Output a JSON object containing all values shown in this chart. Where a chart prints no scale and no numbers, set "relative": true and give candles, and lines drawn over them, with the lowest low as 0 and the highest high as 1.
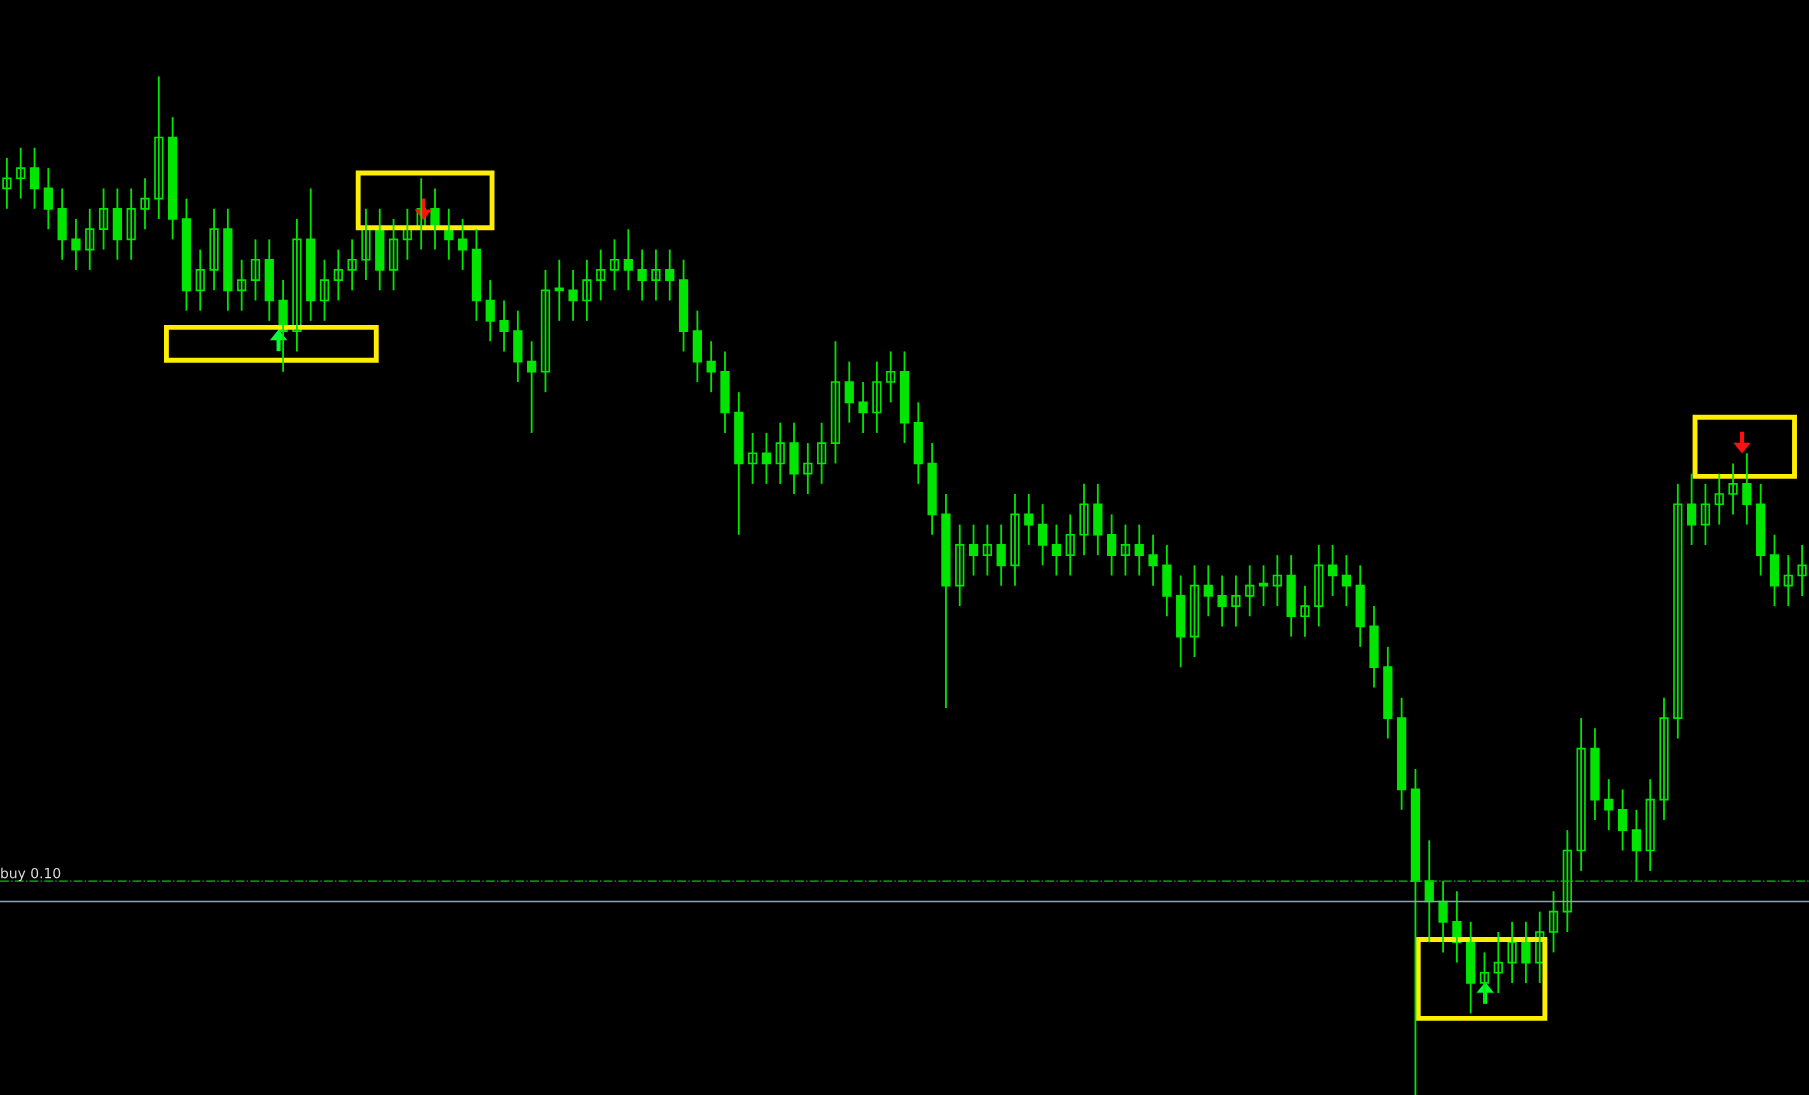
{
  "chart_data": {
    "type": "candlestick",
    "relative": true,
    "categories": [
      null,
      null,
      null,
      null,
      null,
      null,
      null,
      null,
      null,
      null,
      null,
      null,
      null,
      null,
      null,
      null,
      null,
      null,
      null,
      null,
      null,
      null,
      null,
      null,
      null,
      null,
      null,
      null,
      null,
      null,
      null,
      null,
      null,
      null,
      null,
      null,
      null,
      null,
      null,
      null,
      null,
      null,
      null,
      null,
      null,
      null,
      null,
      null,
      null,
      null,
      null,
      null,
      null,
      null,
      null,
      null,
      null,
      null,
      null,
      null,
      null,
      null,
      null,
      null,
      null,
      null,
      null,
      null,
      null,
      null,
      null,
      null,
      null,
      null,
      null,
      null,
      null,
      null,
      null,
      null,
      null,
      null,
      null,
      null,
      null,
      null,
      null,
      null,
      null,
      null,
      null,
      null,
      null,
      null,
      null,
      null,
      null,
      null,
      null,
      null,
      null,
      null,
      null,
      null,
      null,
      null,
      null,
      null,
      null,
      null,
      null,
      null,
      null,
      null,
      null,
      null,
      null,
      null,
      null,
      null,
      null,
      null,
      null,
      null,
      null,
      null,
      null,
      null,
      null,
      null,
      null
    ],
    "series": [
      {
        "color": "#00e600",
        "ohlc": [
          [
            0.89,
            0.92,
            0.87,
            0.9
          ],
          [
            0.9,
            0.93,
            0.88,
            0.91
          ],
          [
            0.91,
            0.93,
            0.87,
            0.89
          ],
          [
            0.89,
            0.91,
            0.85,
            0.87
          ],
          [
            0.87,
            0.89,
            0.82,
            0.84
          ],
          [
            0.84,
            0.86,
            0.81,
            0.83
          ],
          [
            0.83,
            0.87,
            0.81,
            0.85
          ],
          [
            0.85,
            0.89,
            0.83,
            0.87
          ],
          [
            0.87,
            0.89,
            0.82,
            0.84
          ],
          [
            0.84,
            0.89,
            0.82,
            0.87
          ],
          [
            0.87,
            0.9,
            0.85,
            0.88
          ],
          [
            0.88,
            1.0,
            0.86,
            0.94
          ],
          [
            0.94,
            0.96,
            0.84,
            0.86
          ],
          [
            0.86,
            0.88,
            0.77,
            0.79
          ],
          [
            0.79,
            0.83,
            0.77,
            0.81
          ],
          [
            0.81,
            0.87,
            0.79,
            0.85
          ],
          [
            0.85,
            0.87,
            0.77,
            0.79
          ],
          [
            0.79,
            0.82,
            0.77,
            0.8
          ],
          [
            0.8,
            0.84,
            0.78,
            0.82
          ],
          [
            0.82,
            0.84,
            0.76,
            0.78
          ],
          [
            0.78,
            0.8,
            0.71,
            0.75
          ],
          [
            0.75,
            0.86,
            0.73,
            0.84
          ],
          [
            0.84,
            0.89,
            0.76,
            0.78
          ],
          [
            0.78,
            0.82,
            0.76,
            0.8
          ],
          [
            0.8,
            0.83,
            0.78,
            0.81
          ],
          [
            0.81,
            0.84,
            0.79,
            0.82
          ],
          [
            0.82,
            0.87,
            0.8,
            0.85
          ],
          [
            0.85,
            0.87,
            0.79,
            0.81
          ],
          [
            0.81,
            0.86,
            0.79,
            0.84
          ],
          [
            0.84,
            0.87,
            0.82,
            0.85
          ],
          [
            0.85,
            0.9,
            0.83,
            0.87
          ],
          [
            0.87,
            0.89,
            0.83,
            0.85
          ],
          [
            0.85,
            0.87,
            0.82,
            0.84
          ],
          [
            0.84,
            0.86,
            0.81,
            0.83
          ],
          [
            0.83,
            0.85,
            0.76,
            0.78
          ],
          [
            0.78,
            0.8,
            0.74,
            0.76
          ],
          [
            0.76,
            0.78,
            0.73,
            0.75
          ],
          [
            0.75,
            0.77,
            0.7,
            0.72
          ],
          [
            0.72,
            0.74,
            0.65,
            0.71
          ],
          [
            0.71,
            0.81,
            0.69,
            0.79
          ],
          [
            0.79,
            0.82,
            0.76,
            0.79
          ],
          [
            0.79,
            0.81,
            0.76,
            0.78
          ],
          [
            0.78,
            0.82,
            0.76,
            0.8
          ],
          [
            0.8,
            0.83,
            0.78,
            0.81
          ],
          [
            0.81,
            0.84,
            0.79,
            0.82
          ],
          [
            0.82,
            0.85,
            0.79,
            0.81
          ],
          [
            0.81,
            0.83,
            0.78,
            0.8
          ],
          [
            0.8,
            0.83,
            0.78,
            0.81
          ],
          [
            0.81,
            0.83,
            0.78,
            0.8
          ],
          [
            0.8,
            0.82,
            0.73,
            0.75
          ],
          [
            0.75,
            0.77,
            0.7,
            0.72
          ],
          [
            0.72,
            0.74,
            0.69,
            0.71
          ],
          [
            0.71,
            0.73,
            0.65,
            0.67
          ],
          [
            0.67,
            0.69,
            0.55,
            0.62
          ],
          [
            0.62,
            0.65,
            0.6,
            0.63
          ],
          [
            0.63,
            0.65,
            0.6,
            0.62
          ],
          [
            0.62,
            0.66,
            0.6,
            0.64
          ],
          [
            0.64,
            0.66,
            0.59,
            0.61
          ],
          [
            0.61,
            0.64,
            0.59,
            0.62
          ],
          [
            0.62,
            0.66,
            0.6,
            0.64
          ],
          [
            0.64,
            0.74,
            0.62,
            0.7
          ],
          [
            0.7,
            0.72,
            0.66,
            0.68
          ],
          [
            0.68,
            0.7,
            0.65,
            0.67
          ],
          [
            0.67,
            0.72,
            0.65,
            0.7
          ],
          [
            0.7,
            0.73,
            0.68,
            0.71
          ],
          [
            0.71,
            0.73,
            0.64,
            0.66
          ],
          [
            0.66,
            0.68,
            0.6,
            0.62
          ],
          [
            0.62,
            0.64,
            0.55,
            0.57
          ],
          [
            0.57,
            0.59,
            0.38,
            0.5
          ],
          [
            0.5,
            0.56,
            0.48,
            0.54
          ],
          [
            0.54,
            0.56,
            0.51,
            0.53
          ],
          [
            0.53,
            0.56,
            0.51,
            0.54
          ],
          [
            0.54,
            0.56,
            0.5,
            0.52
          ],
          [
            0.52,
            0.59,
            0.5,
            0.57
          ],
          [
            0.57,
            0.59,
            0.54,
            0.56
          ],
          [
            0.56,
            0.58,
            0.52,
            0.54
          ],
          [
            0.54,
            0.56,
            0.51,
            0.53
          ],
          [
            0.53,
            0.57,
            0.51,
            0.55
          ],
          [
            0.55,
            0.6,
            0.53,
            0.58
          ],
          [
            0.58,
            0.6,
            0.53,
            0.55
          ],
          [
            0.55,
            0.57,
            0.51,
            0.53
          ],
          [
            0.53,
            0.56,
            0.51,
            0.54
          ],
          [
            0.54,
            0.56,
            0.51,
            0.53
          ],
          [
            0.53,
            0.55,
            0.5,
            0.52
          ],
          [
            0.52,
            0.54,
            0.47,
            0.49
          ],
          [
            0.49,
            0.51,
            0.42,
            0.45
          ],
          [
            0.45,
            0.52,
            0.43,
            0.5
          ],
          [
            0.5,
            0.52,
            0.47,
            0.49
          ],
          [
            0.49,
            0.51,
            0.46,
            0.48
          ],
          [
            0.48,
            0.51,
            0.46,
            0.49
          ],
          [
            0.49,
            0.52,
            0.47,
            0.5
          ],
          [
            0.5,
            0.52,
            0.48,
            0.5
          ],
          [
            0.5,
            0.53,
            0.48,
            0.51
          ],
          [
            0.51,
            0.53,
            0.45,
            0.47
          ],
          [
            0.47,
            0.5,
            0.45,
            0.48
          ],
          [
            0.48,
            0.54,
            0.46,
            0.52
          ],
          [
            0.52,
            0.54,
            0.49,
            0.51
          ],
          [
            0.51,
            0.53,
            0.48,
            0.5
          ],
          [
            0.5,
            0.52,
            0.44,
            0.46
          ],
          [
            0.46,
            0.48,
            0.4,
            0.42
          ],
          [
            0.42,
            0.44,
            0.35,
            0.37
          ],
          [
            0.37,
            0.39,
            0.28,
            0.3
          ],
          [
            0.3,
            0.32,
            0.0,
            0.21
          ],
          [
            0.21,
            0.25,
            0.15,
            0.19
          ],
          [
            0.19,
            0.21,
            0.14,
            0.17
          ],
          [
            0.17,
            0.2,
            0.13,
            0.15
          ],
          [
            0.15,
            0.17,
            0.08,
            0.11
          ],
          [
            0.11,
            0.14,
            0.09,
            0.12
          ],
          [
            0.12,
            0.16,
            0.1,
            0.13
          ],
          [
            0.13,
            0.17,
            0.11,
            0.15
          ],
          [
            0.15,
            0.17,
            0.11,
            0.13
          ],
          [
            0.13,
            0.18,
            0.11,
            0.16
          ],
          [
            0.16,
            0.2,
            0.14,
            0.18
          ],
          [
            0.18,
            0.26,
            0.16,
            0.24
          ],
          [
            0.24,
            0.37,
            0.22,
            0.34
          ],
          [
            0.34,
            0.36,
            0.27,
            0.29
          ],
          [
            0.29,
            0.31,
            0.26,
            0.28
          ],
          [
            0.28,
            0.3,
            0.24,
            0.26
          ],
          [
            0.26,
            0.28,
            0.21,
            0.24
          ],
          [
            0.24,
            0.31,
            0.22,
            0.29
          ],
          [
            0.29,
            0.39,
            0.27,
            0.37
          ],
          [
            0.37,
            0.6,
            0.35,
            0.58
          ],
          [
            0.58,
            0.61,
            0.54,
            0.56
          ],
          [
            0.56,
            0.6,
            0.54,
            0.58
          ],
          [
            0.58,
            0.61,
            0.56,
            0.59
          ],
          [
            0.59,
            0.62,
            0.57,
            0.6
          ],
          [
            0.6,
            0.63,
            0.56,
            0.58
          ],
          [
            0.58,
            0.6,
            0.51,
            0.53
          ],
          [
            0.53,
            0.55,
            0.48,
            0.5
          ],
          [
            0.5,
            0.53,
            0.48,
            0.51
          ],
          [
            0.51,
            0.54,
            0.49,
            0.52
          ]
        ]
      }
    ],
    "ref_lines": [
      {
        "axis": "y",
        "value": 0.21,
        "label": "buy 0.10",
        "color": "#00c800",
        "line_style": "dashdot"
      },
      {
        "axis": "y",
        "value": 0.19,
        "color": "#8fa3b8",
        "line_style": "solid"
      }
    ]
  }
}
